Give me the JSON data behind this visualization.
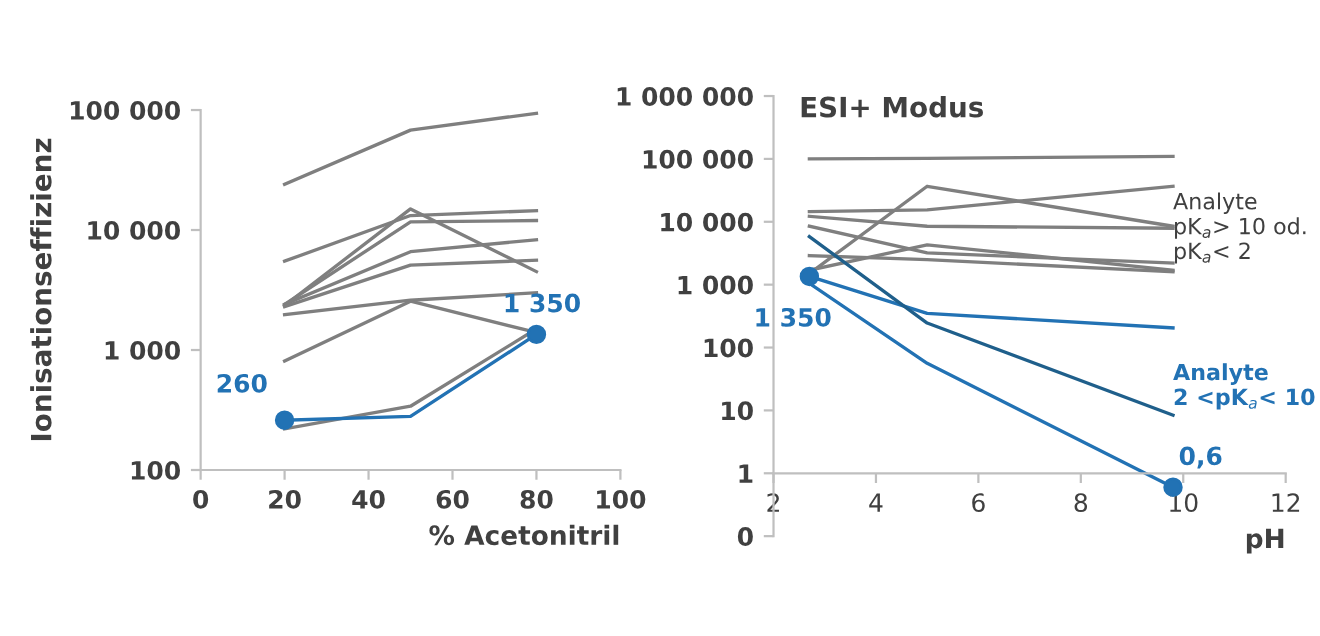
{
  "chart_data": [
    {
      "type": "line",
      "xlabel": "% Acetonitril",
      "ylabel": "Ionisationseffizienz",
      "log": "y",
      "grid": false,
      "legend": false,
      "x": [
        20,
        50,
        80
      ],
      "xlim": [
        0,
        100
      ],
      "xticks": [
        0,
        20,
        40,
        60,
        80,
        100
      ],
      "ylim": [
        100,
        100000
      ],
      "yticks": [
        {
          "value": 100,
          "label": "100"
        },
        {
          "value": 1000,
          "label": "1 000"
        },
        {
          "value": 10000,
          "label": "10 000"
        },
        {
          "value": 100000,
          "label": "100 000"
        }
      ],
      "series": [
        {
          "color": "#7f7f7f",
          "values": [
            24000,
            68000,
            94000
          ]
        },
        {
          "color": "#7f7f7f",
          "values": [
            5500,
            13200,
            14500
          ]
        },
        {
          "color": "#7f7f7f",
          "values": [
            2400,
            11700,
            12000
          ]
        },
        {
          "color": "#7f7f7f",
          "values": [
            2350,
            15000,
            4500
          ]
        },
        {
          "color": "#7f7f7f",
          "values": [
            2400,
            6600,
            8300
          ]
        },
        {
          "color": "#7f7f7f",
          "values": [
            2300,
            5100,
            5600
          ]
        },
        {
          "color": "#7f7f7f",
          "values": [
            1970,
            2600,
            3000
          ]
        },
        {
          "color": "#7f7f7f",
          "values": [
            810,
            2550,
            1400
          ]
        },
        {
          "color": "#7f7f7f",
          "values": [
            220,
            340,
            1500
          ]
        },
        {
          "color": "#2272b4",
          "values": [
            260,
            280,
            1350
          ],
          "value_labels": [
            "260",
            null,
            "1 350"
          ]
        }
      ]
    },
    {
      "type": "line",
      "title": "ESI+ Modus",
      "xlabel": "pH",
      "log": "y",
      "grid": false,
      "legend": false,
      "x": [
        2.7,
        5,
        9.8
      ],
      "xlim": [
        2,
        12
      ],
      "xticks": [
        2,
        4,
        6,
        8,
        10,
        12
      ],
      "ylim": [
        0.1,
        1000000
      ],
      "yticks": [
        {
          "value": 0.1,
          "label": "0"
        },
        1,
        10,
        100,
        {
          "value": 1000,
          "label": "1 000"
        },
        {
          "value": 10000,
          "label": "10 000"
        },
        {
          "value": 100000,
          "label": "100 000"
        },
        {
          "value": 1000000,
          "label": "1 000 000"
        }
      ],
      "annotations": [
        "Analyte\npK$_{a}$> 10 od.\npK$_{a}$< 2",
        "Analyte\n2 <pK$_{a}$< 10"
      ],
      "series": [
        {
          "color": "#7f7f7f",
          "values": [
            100000,
            102000,
            110000
          ]
        },
        {
          "color": "#7f7f7f",
          "values": [
            14500,
            15500,
            36700
          ]
        },
        {
          "color": "#7f7f7f",
          "values": [
            1500,
            36700,
            8500
          ]
        },
        {
          "color": "#7f7f7f",
          "values": [
            12200,
            8500,
            7900
          ]
        },
        {
          "color": "#7f7f7f",
          "values": [
            8500,
            3200,
            2200
          ]
        },
        {
          "color": "#7f7f7f",
          "values": [
            2900,
            2500,
            1600
          ]
        },
        {
          "color": "#7f7f7f",
          "values": [
            1700,
            4300,
            1700
          ]
        },
        {
          "color": "#2272b4",
          "values": [
            1350,
            350,
            205
          ],
          "value_labels": [
            "1 350",
            null,
            null
          ]
        },
        {
          "color": "#1f5f8b",
          "values": [
            5800,
            245,
            8.4
          ]
        },
        {
          "color": "#2272b4",
          "values": [
            1050,
            56,
            0.6
          ],
          "value_labels": [
            null,
            null,
            "0,6"
          ]
        }
      ]
    }
  ]
}
